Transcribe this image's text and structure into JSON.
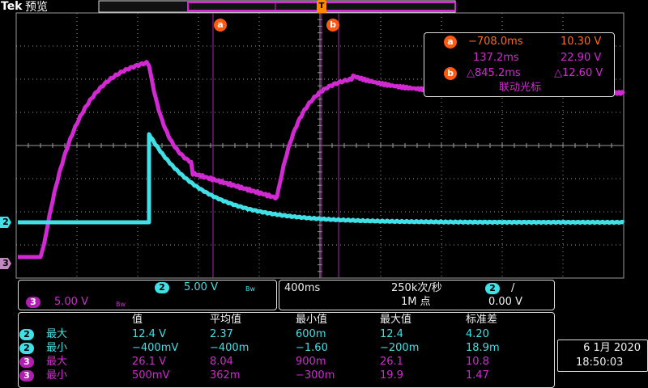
{
  "header": {
    "brand": "Tek",
    "mode": "预览"
  },
  "colors": {
    "ch2": "#3fe0e6",
    "ch3": "#d22ad2",
    "cursor": "#ff5a10",
    "grid": "#9a9a9a"
  },
  "markers": {
    "cursor_a": "a",
    "cursor_b": "b",
    "trigger": "T",
    "ch2": "2",
    "ch3": "3"
  },
  "readout": {
    "a_time": "−708.0ms",
    "a_volt": "10.30 V",
    "b_time": "137.2ms",
    "b_volt": "22.90 V",
    "delta_time": "△845.2ms",
    "delta_volt": "△12.60 V",
    "linked": "联动光标"
  },
  "channels": {
    "ch2_scale": "5.00 V",
    "ch2_bw": "Bw",
    "ch3_scale": "5.00 V",
    "ch3_bw": "Bw"
  },
  "timebase": {
    "scale": "400ms",
    "rate": "250k次/秒",
    "record": "1M 点",
    "trig_ch": "2",
    "trig_slope": "/",
    "trig_level": "0.00 V"
  },
  "measurements": {
    "headers": [
      "值",
      "平均值",
      "最小值",
      "最大值",
      "标准差"
    ],
    "rows": [
      {
        "ch": "2",
        "label": "最大",
        "cells": [
          "12.4 V",
          "2.37",
          "600m",
          "12.4",
          "4.20"
        ]
      },
      {
        "ch": "2",
        "label": "最小",
        "cells": [
          "−400mV",
          "−400m",
          "−1.60",
          "−200m",
          "18.9m"
        ]
      },
      {
        "ch": "3",
        "label": "最大",
        "cells": [
          "26.1 V",
          "8.04",
          "900m",
          "26.1",
          "10.8"
        ]
      },
      {
        "ch": "3",
        "label": "最小",
        "cells": [
          "500mV",
          "362m",
          "−300m",
          "19.9",
          "1.47"
        ]
      }
    ]
  },
  "datetime": {
    "date": "6 1月 2020",
    "time": "18:50:03"
  }
}
